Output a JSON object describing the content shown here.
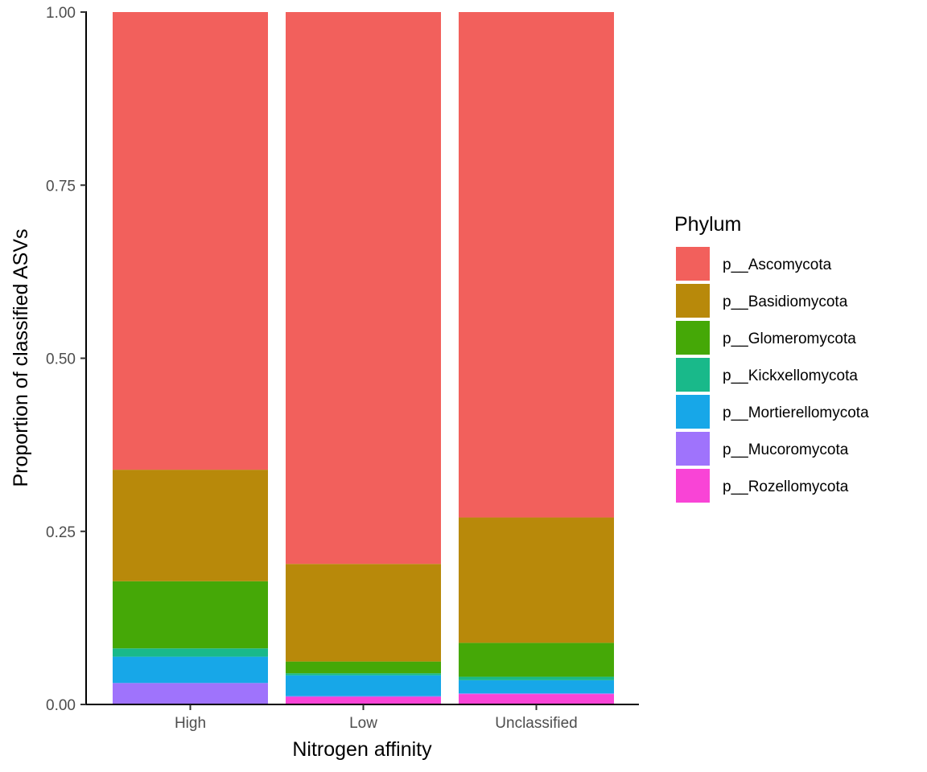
{
  "chart_data": {
    "type": "bar",
    "stacked": true,
    "categories": [
      "High",
      "Low",
      "Unclassified"
    ],
    "series": [
      {
        "name": "p__Ascomycota",
        "color": "#F2605C",
        "values": [
          0.661,
          0.797,
          0.73
        ]
      },
      {
        "name": "p__Basidiomycota",
        "color": "#B8890A",
        "values": [
          0.161,
          0.141,
          0.181
        ]
      },
      {
        "name": "p__Glomeromycota",
        "color": "#45A807",
        "values": [
          0.097,
          0.017,
          0.049
        ]
      },
      {
        "name": "p__Kickxellomycota",
        "color": "#19B98A",
        "values": [
          0.012,
          0.003,
          0.005
        ]
      },
      {
        "name": "p__Mortierellomycota",
        "color": "#17A7E8",
        "values": [
          0.038,
          0.03,
          0.019
        ]
      },
      {
        "name": "p__Mucoromycota",
        "color": "#9F73FC",
        "values": [
          0.031,
          0.001,
          0.001
        ]
      },
      {
        "name": "p__Rozellomycota",
        "color": "#F944D6",
        "values": [
          0.0,
          0.011,
          0.015
        ]
      }
    ],
    "title": "",
    "xlabel": "Nitrogen affinity",
    "ylabel": "Proportion of classified ASVs",
    "ylim": [
      0,
      1
    ],
    "yticks": [
      "0.00",
      "0.25",
      "0.50",
      "0.75",
      "1.00"
    ],
    "legend_title": "Phylum",
    "legend_position": "right",
    "grid": false
  }
}
